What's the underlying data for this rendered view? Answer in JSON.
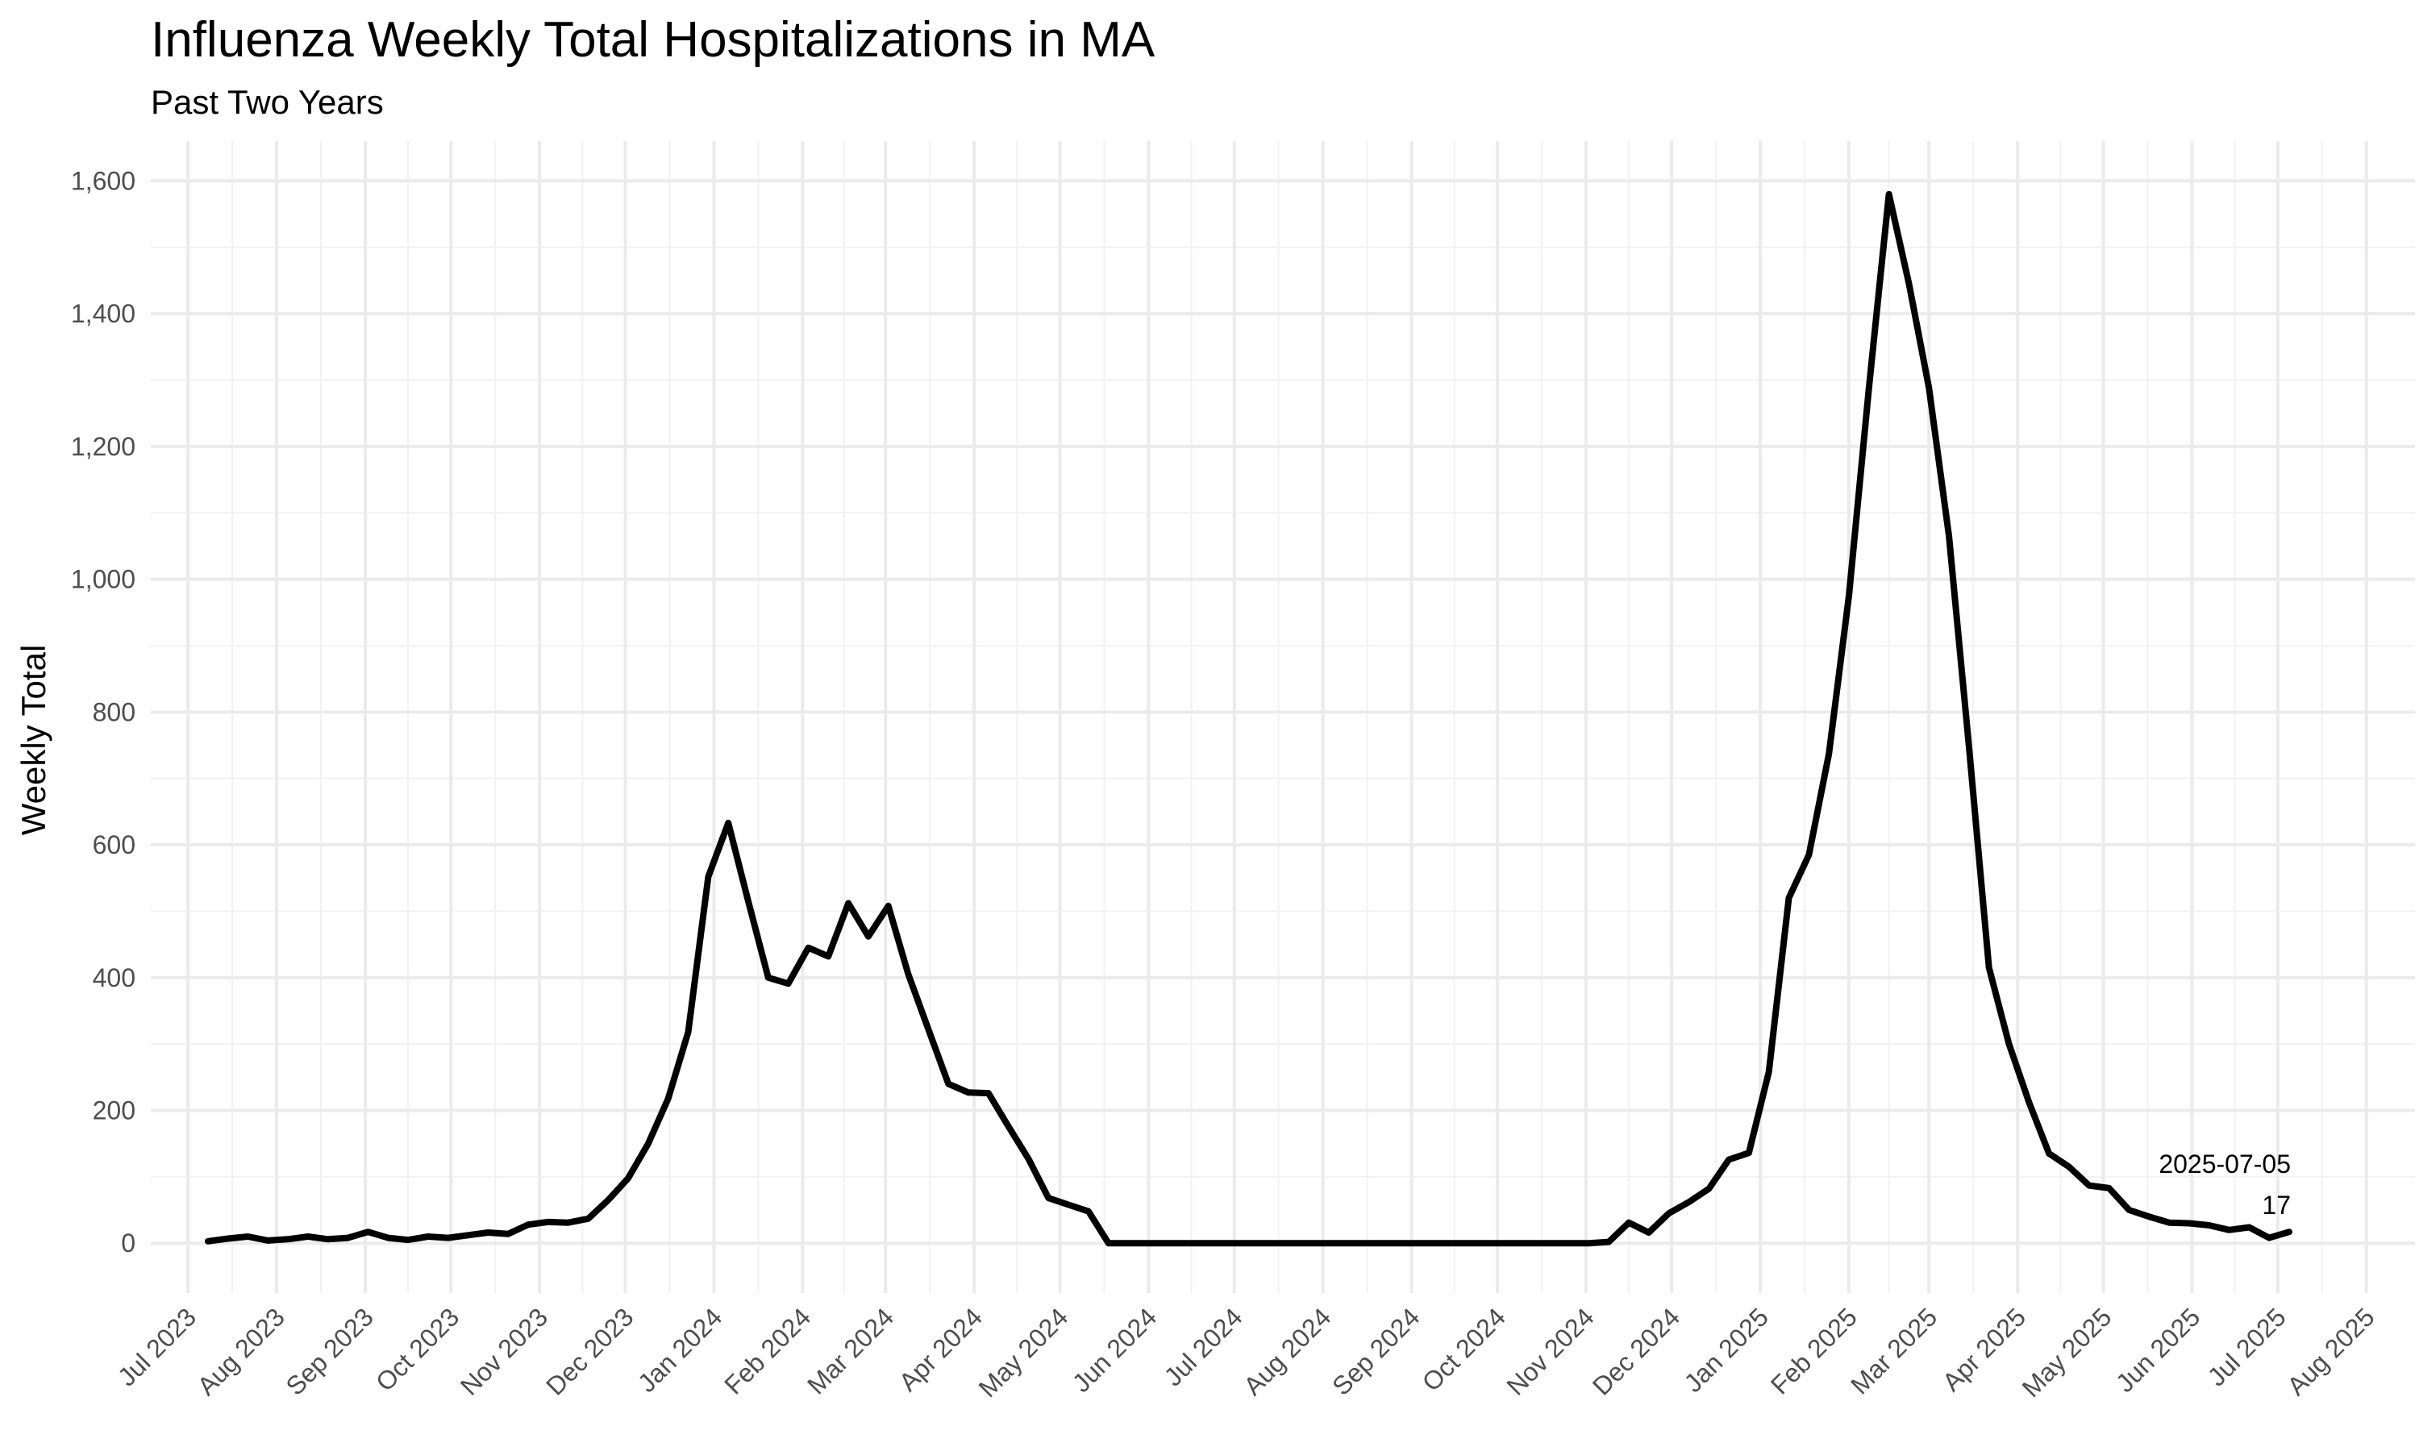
{
  "chart_data": {
    "type": "line",
    "title": "Influenza Weekly Total Hospitalizations in MA",
    "subtitle": "Past Two Years",
    "xlabel": "",
    "ylabel": "Weekly Total",
    "xlim": [
      "2023-06-18",
      "2025-08-18"
    ],
    "ylim": [
      -75,
      1660
    ],
    "yticks": [
      0,
      200,
      400,
      600,
      800,
      1000,
      1200,
      1400,
      1600
    ],
    "ytick_labels": [
      "0",
      "200",
      "400",
      "600",
      "800",
      "1,000",
      "1,200",
      "1,400",
      "1,600"
    ],
    "xticks": [
      "2023-07-01",
      "2023-08-01",
      "2023-09-01",
      "2023-10-01",
      "2023-11-01",
      "2023-12-01",
      "2024-01-01",
      "2024-02-01",
      "2024-03-01",
      "2024-04-01",
      "2024-05-01",
      "2024-06-01",
      "2024-07-01",
      "2024-08-01",
      "2024-09-01",
      "2024-10-01",
      "2024-11-01",
      "2024-12-01",
      "2025-01-01",
      "2025-02-01",
      "2025-03-01",
      "2025-04-01",
      "2025-05-01",
      "2025-06-01",
      "2025-07-01",
      "2025-08-01"
    ],
    "xtick_labels": [
      "Jul 2023",
      "Aug 2023",
      "Sep 2023",
      "Oct 2023",
      "Nov 2023",
      "Dec 2023",
      "Jan 2024",
      "Feb 2024",
      "Mar 2024",
      "Apr 2024",
      "May 2024",
      "Jun 2024",
      "Jul 2024",
      "Aug 2024",
      "Sep 2024",
      "Oct 2024",
      "Nov 2024",
      "Dec 2024",
      "Jan 2025",
      "Feb 2025",
      "Mar 2025",
      "Apr 2025",
      "May 2025",
      "Jun 2025",
      "Jul 2025",
      "Aug 2025"
    ],
    "grid": true,
    "series": [
      {
        "color": "#000000",
        "x": [
          "2023-07-08",
          "2023-07-15",
          "2023-07-22",
          "2023-07-29",
          "2023-08-05",
          "2023-08-12",
          "2023-08-19",
          "2023-08-26",
          "2023-09-02",
          "2023-09-09",
          "2023-09-16",
          "2023-09-23",
          "2023-09-30",
          "2023-10-07",
          "2023-10-14",
          "2023-10-21",
          "2023-10-28",
          "2023-11-04",
          "2023-11-11",
          "2023-11-18",
          "2023-11-25",
          "2023-12-02",
          "2023-12-09",
          "2023-12-16",
          "2023-12-23",
          "2023-12-30",
          "2024-01-06",
          "2024-01-13",
          "2024-01-20",
          "2024-01-27",
          "2024-02-03",
          "2024-02-10",
          "2024-02-17",
          "2024-02-24",
          "2024-03-02",
          "2024-03-09",
          "2024-03-16",
          "2024-03-23",
          "2024-03-30",
          "2024-04-06",
          "2024-04-13",
          "2024-04-20",
          "2024-04-27",
          "2024-05-04",
          "2024-05-11",
          "2024-05-18",
          "2024-05-25",
          "2024-06-01",
          "2024-06-08",
          "2024-06-15",
          "2024-06-22",
          "2024-06-29",
          "2024-07-06",
          "2024-07-13",
          "2024-07-20",
          "2024-07-27",
          "2024-08-03",
          "2024-08-10",
          "2024-08-17",
          "2024-08-24",
          "2024-08-31",
          "2024-09-07",
          "2024-09-14",
          "2024-09-21",
          "2024-09-28",
          "2024-10-05",
          "2024-10-12",
          "2024-10-19",
          "2024-10-26",
          "2024-11-02",
          "2024-11-09",
          "2024-11-16",
          "2024-11-23",
          "2024-11-30",
          "2024-12-07",
          "2024-12-14",
          "2024-12-21",
          "2024-12-28",
          "2025-01-04",
          "2025-01-11",
          "2025-01-18",
          "2025-01-25",
          "2025-02-01",
          "2025-02-08",
          "2025-02-15",
          "2025-02-22",
          "2025-03-01",
          "2025-03-08",
          "2025-03-15",
          "2025-03-22",
          "2025-03-29",
          "2025-04-05",
          "2025-04-12",
          "2025-04-19",
          "2025-04-26",
          "2025-05-03",
          "2025-05-10",
          "2025-05-17",
          "2025-05-24",
          "2025-05-31",
          "2025-06-07",
          "2025-06-14",
          "2025-06-21",
          "2025-06-28",
          "2025-07-05"
        ],
        "y": [
          3,
          7,
          10,
          4,
          6,
          10,
          6,
          8,
          17,
          8,
          5,
          10,
          8,
          12,
          16,
          14,
          28,
          32,
          31,
          37,
          65,
          98,
          150,
          218,
          318,
          552,
          633,
          515,
          400,
          391,
          445,
          432,
          512,
          462,
          508,
          405,
          322,
          240,
          227,
          226,
          176,
          127,
          68,
          58,
          48,
          0,
          0,
          0,
          0,
          0,
          0,
          0,
          0,
          0,
          0,
          0,
          0,
          0,
          0,
          0,
          0,
          0,
          0,
          0,
          0,
          0,
          0,
          0,
          0,
          0,
          2,
          31,
          16,
          45,
          62,
          82,
          126,
          136,
          258,
          520,
          585,
          737,
          975,
          1288,
          1580,
          1445,
          1288,
          1065,
          748,
          415,
          300,
          212,
          135,
          115,
          87,
          83,
          50,
          40,
          31,
          30,
          27,
          20,
          24,
          8,
          17
        ]
      }
    ],
    "annotations": [
      {
        "x": "2025-07-05",
        "y": 17,
        "lines": [
          "2025-07-05",
          "17"
        ]
      }
    ]
  }
}
